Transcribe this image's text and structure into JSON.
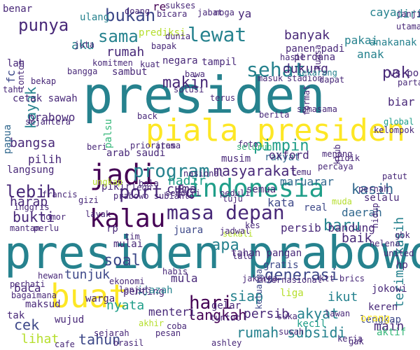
{
  "image_kind": "word cloud",
  "palette": [
    "#440154",
    "#482878",
    "#3e4989",
    "#31688e",
    "#26828e",
    "#1f9e89",
    "#35b779",
    "#6ece58",
    "#b5de2b",
    "#fde725"
  ],
  "words": [
    {
      "text": "presiden"
    },
    {
      "text": "presiden prabowo"
    },
    {
      "text": "piala presiden"
    },
    {
      "text": "indonesia"
    },
    {
      "text": "buat"
    },
    {
      "text": "jadi"
    },
    {
      "text": "kalau"
    },
    {
      "text": "masa depan"
    },
    {
      "text": "sehat"
    },
    {
      "text": "lewat"
    },
    {
      "text": "program"
    },
    {
      "text": "port fc"
    },
    {
      "text": "sama"
    },
    {
      "text": "bukan"
    },
    {
      "text": "punya"
    },
    {
      "text": "lebih"
    },
    {
      "text": "makin"
    },
    {
      "text": "baru"
    },
    {
      "text": "pimpin"
    },
    {
      "text": "masyarakat"
    },
    {
      "text": "kayak"
    },
    {
      "text": "rumah"
    },
    {
      "text": "banyak"
    },
    {
      "text": "rakyat"
    },
    {
      "text": "hari"
    },
    {
      "text": "soal"
    },
    {
      "text": "generasi"
    },
    {
      "text": "langkah"
    },
    {
      "text": "rumah subsidi"
    },
    {
      "text": "tahun"
    },
    {
      "text": "siap"
    },
    {
      "text": "persib"
    },
    {
      "text": "persib bandung"
    },
    {
      "text": "baik"
    },
    {
      "text": "kasih"
    },
    {
      "text": "daerah"
    },
    {
      "text": "terima kasih"
    },
    {
      "text": "pakai"
    },
    {
      "text": "anak"
    },
    {
      "text": "anakanak"
    },
    {
      "text": "pak"
    },
    {
      "text": "diri"
    },
    {
      "text": "dukung"
    },
    {
      "text": "bangsa"
    },
    {
      "text": "bukti"
    },
    {
      "text": "harap"
    },
    {
      "text": "cuma"
    },
    {
      "text": "kata"
    },
    {
      "text": "hadir"
    },
    {
      "text": "apa"
    },
    {
      "text": "juara"
    },
    {
      "text": "nyata"
    },
    {
      "text": "akyat"
    },
    {
      "text": "ikut"
    },
    {
      "text": "main"
    },
    {
      "text": "keren"
    },
    {
      "text": "jokowi"
    },
    {
      "text": "cek"
    },
    {
      "text": "lihat"
    },
    {
      "text": "tunjuk"
    },
    {
      "text": "baca"
    },
    {
      "text": "mula"
    },
    {
      "text": "menteri"
    },
    {
      "text": "penting"
    },
    {
      "text": "gelar"
    },
    {
      "text": "arab saudi"
    },
    {
      "text": "musim"
    },
    {
      "text": "oxford"
    },
    {
      "text": "maruarar"
    },
    {
      "text": "semua"
    },
    {
      "text": "selalu"
    },
    {
      "text": "lengkap"
    },
    {
      "text": "liga"
    },
    {
      "text": "orang"
    },
    {
      "text": "aktif"
    },
    {
      "text": "kecil"
    },
    {
      "text": "tahan pangan"
    },
    {
      "text": "internasional"
    },
    {
      "text": "ktt brics"
    },
    {
      "text": "sambut"
    },
    {
      "text": "negara"
    },
    {
      "text": "perdana"
    },
    {
      "text": "panen padi"
    },
    {
      "text": "stadion"
    },
    {
      "text": "caya"
    },
    {
      "text": "vs port"
    },
    {
      "text": "biar"
    },
    {
      "text": "pilih"
    },
    {
      "text": "langsung"
    },
    {
      "text": "pikir"
    },
    {
      "text": "prabowo"
    },
    {
      "text": "papua"
    },
    {
      "text": "tahu"
    },
    {
      "text": "benar"
    },
    {
      "text": "aku"
    },
    {
      "text": "fc"
    },
    {
      "text": "rp"
    },
    {
      "text": "tim"
    },
    {
      "text": "mulai"
    },
    {
      "text": "maksud"
    },
    {
      "text": "warga"
    },
    {
      "text": "ijazah"
    },
    {
      "text": "real"
    },
    {
      "text": "tak"
    },
    {
      "text": "wujud"
    },
    {
      "text": "nomor"
    },
    {
      "text": "mantan"
    },
    {
      "text": "perlu"
    },
    {
      "text": "ulang"
    },
    {
      "text": "sukses"
    },
    {
      "text": "prediksi"
    },
    {
      "text": "ashley"
    },
    {
      "text": "cafe"
    },
    {
      "text": "brasil"
    },
    {
      "text": "akhir"
    },
    {
      "text": "coba"
    },
    {
      "text": "kuat"
    },
    {
      "text": "tampil"
    },
    {
      "text": "bapak"
    },
    {
      "text": "kelompok"
    },
    {
      "text": "global"
    },
    {
      "text": "bagaimana"
    },
    {
      "text": "perhati"
    },
    {
      "text": "hewan"
    },
    {
      "text": "helena"
    },
    {
      "text": "united"
    },
    {
      "text": "hp"
    },
    {
      "text": "gbk"
    },
    {
      "text": "susah"
    },
    {
      "text": "suka"
    },
    {
      "text": "habis"
    },
    {
      "text": "leon"
    },
    {
      "text": "arema"
    },
    {
      "text": "prioritas"
    },
    {
      "text": "francis"
    },
    {
      "text": "inggris"
    },
    {
      "text": "gizi"
    },
    {
      "text": "layak"
    },
    {
      "text": "sejahtera"
    },
    {
      "text": "prabowo subianto"
    },
    {
      "text": "tonton"
    },
    {
      "text": "utama"
    },
    {
      "text": "janji"
    },
    {
      "text": "partai"
    },
    {
      "text": "bekap"
    },
    {
      "text": "cetak sawah"
    },
    {
      "text": "komitmen"
    },
    {
      "text": "sekarang"
    },
    {
      "text": "masuk"
    },
    {
      "text": "menang"
    },
    {
      "text": "percaya"
    },
    {
      "text": "keluarga"
    },
    {
      "text": "gratis"
    },
    {
      "text": "didik"
    },
    {
      "text": "jabat"
    },
    {
      "text": "moga"
    },
    {
      "text": "doang"
    },
    {
      "text": "dunia"
    },
    {
      "text": "bicara"
    },
    {
      "text": "re"
    },
    {
      "text": "ya"
    },
    {
      "text": "juta"
    },
    {
      "text": "hasil"
    },
    {
      "text": "kuasa"
    },
    {
      "text": "palsu"
    },
    {
      "text": "foto"
    },
    {
      "text": "sekali"
    },
    {
      "text": "kes"
    },
    {
      "text": "hidup"
    },
    {
      "text": "muda"
    },
    {
      "text": "terus"
    },
    {
      "text": "nasional"
    },
    {
      "text": "peduli"
    },
    {
      "text": "sendiri"
    },
    {
      "text": "bangga"
    },
    {
      "text": "lah"
    },
    {
      "text": "patut"
    },
    {
      "text": "samasama"
    },
    {
      "text": "bawa"
    },
    {
      "text": "tuju"
    },
    {
      "text": "klub"
    },
    {
      "text": "jadwal"
    },
    {
      "text": "solusi"
    },
    {
      "text": "ungkap"
    },
    {
      "text": "format"
    },
    {
      "text": "back"
    },
    {
      "text": "bola"
    },
    {
      "text": "berita"
    },
    {
      "text": "tuntut"
    },
    {
      "text": "sejarah"
    },
    {
      "text": "beri"
    },
    {
      "text": "gak"
    },
    {
      "text": "seluruh"
    },
    {
      "text": "lalu"
    },
    {
      "text": "lanjut"
    },
    {
      "text": "jakarta"
    },
    {
      "text": "ekonomi"
    },
    {
      "text": "lawan"
    },
    {
      "text": "pernah"
    },
    {
      "text": "temu"
    },
    {
      "text": "dapat"
    },
    {
      "text": "kerja"
    },
    {
      "text": "pesan"
    }
  ]
}
